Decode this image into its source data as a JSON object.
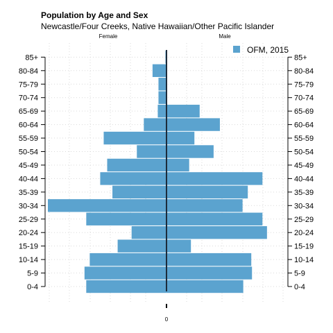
{
  "chart_data": {
    "type": "bar",
    "orientation": "horizontal",
    "layout": "population-pyramid",
    "title": "Population by Age and Sex",
    "subtitle": "Newcastle/Four Creeks, Native Hawaiian/Other Pacific Islander",
    "left_label": "Female",
    "right_label": "Male",
    "x_tick_label": "0",
    "grid": true,
    "legend_position": "top-right",
    "categories": [
      "0-4",
      "5-9",
      "10-14",
      "15-19",
      "20-24",
      "25-29",
      "30-34",
      "35-39",
      "40-44",
      "45-49",
      "50-54",
      "55-59",
      "60-64",
      "65-69",
      "70-74",
      "75-79",
      "80-84",
      "85+"
    ],
    "series": [
      {
        "name": "OFM, 2015",
        "color": "#5ba3cf",
        "female": [
          23,
          23.5,
          22,
          14,
          10,
          23,
          34,
          15.5,
          19,
          17,
          8.5,
          18,
          6.5,
          2.5,
          2.3,
          2.3,
          4,
          0.3
        ],
        "male": [
          22,
          24.5,
          24.3,
          7,
          28.8,
          27.5,
          21.8,
          23.3,
          27.5,
          6.5,
          13.5,
          8,
          15.3,
          9.5,
          0,
          0,
          0,
          0
        ]
      }
    ],
    "xlim": [
      -34,
      34
    ]
  }
}
